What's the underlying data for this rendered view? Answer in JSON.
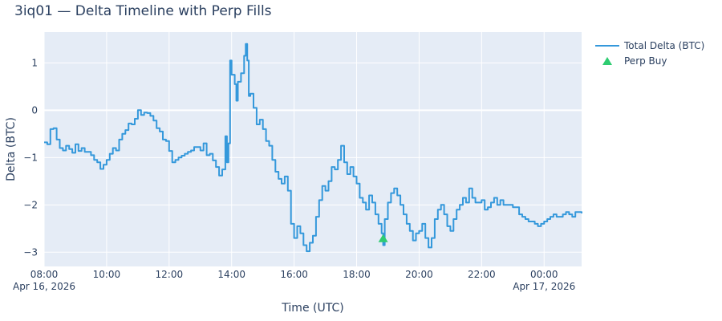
{
  "title": "3iq01 — Delta Timeline with Perp Fills",
  "colors": {
    "plot_bg": "#e5ecf6",
    "grid": "#ffffff",
    "line": "#3498db",
    "marker": "#2ecc71",
    "text": "#2a3f5f"
  },
  "chart_data": {
    "type": "line",
    "title": "3iq01 — Delta Timeline with Perp Fills",
    "xlabel": "Time (UTC)",
    "ylabel": "Delta (BTC)",
    "xlim_hours": [
      8.0,
      25.2
    ],
    "ylim": [
      -3.3,
      1.65
    ],
    "x_ticks": [
      {
        "h": 8,
        "label": "08:00",
        "sub": "Apr 16, 2026"
      },
      {
        "h": 10,
        "label": "10:00",
        "sub": ""
      },
      {
        "h": 12,
        "label": "12:00",
        "sub": ""
      },
      {
        "h": 14,
        "label": "14:00",
        "sub": ""
      },
      {
        "h": 16,
        "label": "16:00",
        "sub": ""
      },
      {
        "h": 18,
        "label": "18:00",
        "sub": ""
      },
      {
        "h": 20,
        "label": "20:00",
        "sub": ""
      },
      {
        "h": 22,
        "label": "22:00",
        "sub": ""
      },
      {
        "h": 24,
        "label": "00:00",
        "sub": "Apr 17, 2026"
      }
    ],
    "y_ticks": [
      1,
      0,
      -1,
      -2,
      -3
    ],
    "grid": true,
    "legend_position": "top-right, outside",
    "series": [
      {
        "name": "Total Delta (BTC)",
        "mode": "line",
        "points": [
          [
            8.0,
            -0.68
          ],
          [
            8.1,
            -0.72
          ],
          [
            8.2,
            -0.4
          ],
          [
            8.3,
            -0.38
          ],
          [
            8.4,
            -0.62
          ],
          [
            8.5,
            -0.8
          ],
          [
            8.6,
            -0.85
          ],
          [
            8.7,
            -0.75
          ],
          [
            8.8,
            -0.82
          ],
          [
            8.9,
            -0.9
          ],
          [
            9.0,
            -0.72
          ],
          [
            9.1,
            -0.86
          ],
          [
            9.2,
            -0.8
          ],
          [
            9.3,
            -0.88
          ],
          [
            9.5,
            -0.95
          ],
          [
            9.6,
            -1.05
          ],
          [
            9.7,
            -1.1
          ],
          [
            9.8,
            -1.24
          ],
          [
            9.9,
            -1.15
          ],
          [
            10.0,
            -1.05
          ],
          [
            10.1,
            -0.92
          ],
          [
            10.2,
            -0.8
          ],
          [
            10.3,
            -0.85
          ],
          [
            10.4,
            -0.62
          ],
          [
            10.5,
            -0.5
          ],
          [
            10.6,
            -0.42
          ],
          [
            10.7,
            -0.28
          ],
          [
            10.8,
            -0.3
          ],
          [
            10.9,
            -0.18
          ],
          [
            11.0,
            0.0
          ],
          [
            11.1,
            -0.1
          ],
          [
            11.2,
            -0.05
          ],
          [
            11.3,
            -0.06
          ],
          [
            11.4,
            -0.12
          ],
          [
            11.5,
            -0.22
          ],
          [
            11.6,
            -0.38
          ],
          [
            11.7,
            -0.45
          ],
          [
            11.8,
            -0.62
          ],
          [
            11.9,
            -0.65
          ],
          [
            12.0,
            -0.86
          ],
          [
            12.1,
            -1.1
          ],
          [
            12.2,
            -1.05
          ],
          [
            12.3,
            -1.0
          ],
          [
            12.4,
            -0.96
          ],
          [
            12.5,
            -0.92
          ],
          [
            12.6,
            -0.88
          ],
          [
            12.7,
            -0.85
          ],
          [
            12.8,
            -0.78
          ],
          [
            12.9,
            -0.78
          ],
          [
            13.0,
            -0.85
          ],
          [
            13.1,
            -0.7
          ],
          [
            13.2,
            -0.95
          ],
          [
            13.3,
            -0.92
          ],
          [
            13.4,
            -1.06
          ],
          [
            13.5,
            -1.2
          ],
          [
            13.6,
            -1.38
          ],
          [
            13.7,
            -1.25
          ],
          [
            13.8,
            -0.55
          ],
          [
            13.85,
            -1.1
          ],
          [
            13.9,
            -0.7
          ],
          [
            13.95,
            1.05
          ],
          [
            14.0,
            0.75
          ],
          [
            14.1,
            0.55
          ],
          [
            14.15,
            0.2
          ],
          [
            14.2,
            0.6
          ],
          [
            14.3,
            0.78
          ],
          [
            14.4,
            1.15
          ],
          [
            14.45,
            1.4
          ],
          [
            14.5,
            1.05
          ],
          [
            14.55,
            0.3
          ],
          [
            14.6,
            0.35
          ],
          [
            14.7,
            0.05
          ],
          [
            14.8,
            -0.3
          ],
          [
            14.9,
            -0.2
          ],
          [
            15.0,
            -0.4
          ],
          [
            15.1,
            -0.65
          ],
          [
            15.2,
            -0.75
          ],
          [
            15.3,
            -1.05
          ],
          [
            15.4,
            -1.3
          ],
          [
            15.5,
            -1.45
          ],
          [
            15.6,
            -1.55
          ],
          [
            15.7,
            -1.4
          ],
          [
            15.8,
            -1.7
          ],
          [
            15.9,
            -2.4
          ],
          [
            16.0,
            -2.7
          ],
          [
            16.1,
            -2.45
          ],
          [
            16.2,
            -2.6
          ],
          [
            16.3,
            -2.85
          ],
          [
            16.4,
            -2.98
          ],
          [
            16.5,
            -2.8
          ],
          [
            16.6,
            -2.65
          ],
          [
            16.7,
            -2.25
          ],
          [
            16.8,
            -1.9
          ],
          [
            16.9,
            -1.6
          ],
          [
            17.0,
            -1.7
          ],
          [
            17.1,
            -1.5
          ],
          [
            17.2,
            -1.2
          ],
          [
            17.3,
            -1.25
          ],
          [
            17.4,
            -1.05
          ],
          [
            17.5,
            -0.75
          ],
          [
            17.6,
            -1.1
          ],
          [
            17.7,
            -1.35
          ],
          [
            17.8,
            -1.2
          ],
          [
            17.9,
            -1.4
          ],
          [
            18.0,
            -1.55
          ],
          [
            18.1,
            -1.85
          ],
          [
            18.2,
            -1.95
          ],
          [
            18.3,
            -2.1
          ],
          [
            18.4,
            -1.8
          ],
          [
            18.5,
            -1.95
          ],
          [
            18.6,
            -2.2
          ],
          [
            18.7,
            -2.4
          ],
          [
            18.8,
            -2.6
          ],
          [
            18.85,
            -2.85
          ],
          [
            18.9,
            -2.3
          ],
          [
            19.0,
            -1.95
          ],
          [
            19.1,
            -1.75
          ],
          [
            19.2,
            -1.65
          ],
          [
            19.3,
            -1.8
          ],
          [
            19.4,
            -2.0
          ],
          [
            19.5,
            -2.2
          ],
          [
            19.6,
            -2.4
          ],
          [
            19.7,
            -2.55
          ],
          [
            19.8,
            -2.75
          ],
          [
            19.9,
            -2.6
          ],
          [
            20.0,
            -2.55
          ],
          [
            20.1,
            -2.4
          ],
          [
            20.2,
            -2.7
          ],
          [
            20.3,
            -2.9
          ],
          [
            20.4,
            -2.7
          ],
          [
            20.5,
            -2.3
          ],
          [
            20.6,
            -2.1
          ],
          [
            20.7,
            -2.0
          ],
          [
            20.8,
            -2.2
          ],
          [
            20.9,
            -2.45
          ],
          [
            21.0,
            -2.55
          ],
          [
            21.1,
            -2.3
          ],
          [
            21.2,
            -2.1
          ],
          [
            21.3,
            -2.0
          ],
          [
            21.4,
            -1.85
          ],
          [
            21.5,
            -1.95
          ],
          [
            21.6,
            -1.65
          ],
          [
            21.7,
            -1.85
          ],
          [
            21.8,
            -1.95
          ],
          [
            22.0,
            -1.9
          ],
          [
            22.1,
            -2.1
          ],
          [
            22.2,
            -2.05
          ],
          [
            22.3,
            -1.95
          ],
          [
            22.4,
            -1.85
          ],
          [
            22.5,
            -2.0
          ],
          [
            22.6,
            -1.9
          ],
          [
            22.7,
            -2.0
          ],
          [
            22.8,
            -2.0
          ],
          [
            23.0,
            -2.05
          ],
          [
            23.1,
            -2.05
          ],
          [
            23.2,
            -2.2
          ],
          [
            23.3,
            -2.25
          ],
          [
            23.4,
            -2.3
          ],
          [
            23.5,
            -2.35
          ],
          [
            23.6,
            -2.35
          ],
          [
            23.7,
            -2.4
          ],
          [
            23.8,
            -2.45
          ],
          [
            23.9,
            -2.4
          ],
          [
            24.0,
            -2.35
          ],
          [
            24.1,
            -2.3
          ],
          [
            24.2,
            -2.25
          ],
          [
            24.3,
            -2.2
          ],
          [
            24.4,
            -2.25
          ],
          [
            24.5,
            -2.25
          ],
          [
            24.6,
            -2.2
          ],
          [
            24.7,
            -2.15
          ],
          [
            24.8,
            -2.2
          ],
          [
            24.9,
            -2.25
          ],
          [
            25.0,
            -2.15
          ],
          [
            25.2,
            -2.18
          ]
        ]
      },
      {
        "name": "Perp Buy",
        "mode": "markers",
        "points": [
          [
            18.85,
            -2.72
          ]
        ]
      }
    ]
  }
}
